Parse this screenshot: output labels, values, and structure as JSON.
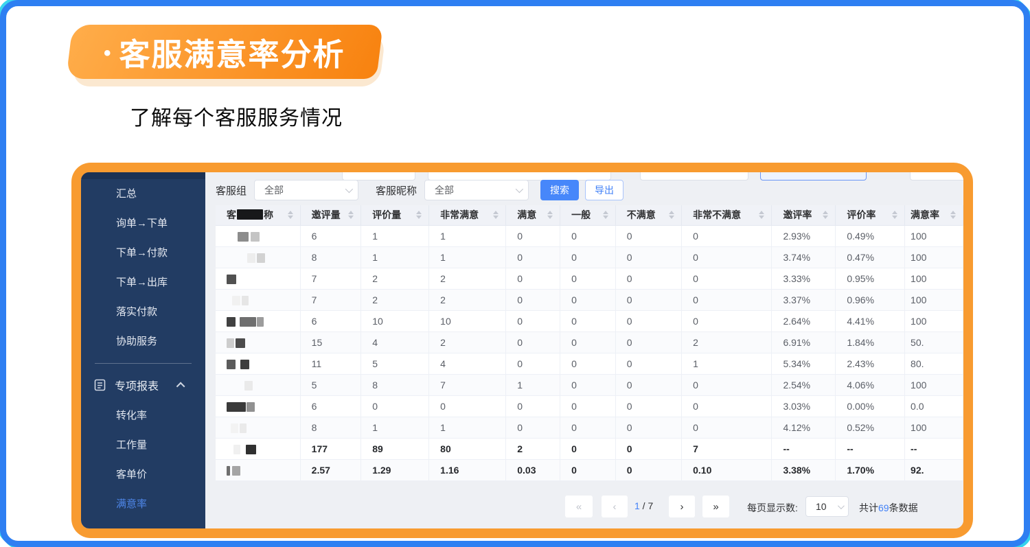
{
  "page": {
    "title_bullet": "•",
    "title": "客服满意率分析",
    "subtitle": "了解每个客服服务情况"
  },
  "sidebar": {
    "items": [
      "汇总",
      "询单→下单",
      "下单→付款",
      "下单→出库",
      "落实付款",
      "协助服务"
    ],
    "section": {
      "label": "专项报表",
      "icon": "document-icon",
      "chevron_icon": "chevron-up-icon"
    },
    "subitems": [
      {
        "label": "转化率",
        "active": false
      },
      {
        "label": "工作量",
        "active": false
      },
      {
        "label": "客单价",
        "active": false
      },
      {
        "label": "满意率",
        "active": true
      }
    ],
    "active_color": "#4E86E8",
    "bg_color": "#223C63"
  },
  "filters": {
    "group_label": "客服组",
    "group_value": "全部",
    "nickname_label": "客服昵称",
    "nickname_value": "全部",
    "search_button": "搜索",
    "export_button": "导出"
  },
  "table": {
    "header": {
      "col1_prefix": "客",
      "col1_suffix": "称",
      "col1_redacted": true,
      "columns": [
        "邀评量",
        "评价量",
        "非常满意",
        "满意",
        "一般",
        "不满意",
        "非常不满意",
        "邀评率",
        "评价率",
        "满意率"
      ]
    },
    "rows": [
      {
        "bold": false,
        "mosaic": [
          {
            "ml": 16,
            "w": 16,
            "c": "#8c8c8c"
          },
          {
            "ml": 3,
            "w": 13,
            "c": "#c4c4c4"
          }
        ],
        "cells": [
          "6",
          "1",
          "1",
          "0",
          "0",
          "0",
          "0",
          "2.93%",
          "0.49%",
          "100"
        ]
      },
      {
        "bold": false,
        "mosaic": [
          {
            "ml": 30,
            "w": 12,
            "c": "#ededed"
          },
          {
            "ml": 2,
            "w": 12,
            "c": "#d2d2d2"
          }
        ],
        "cells": [
          "8",
          "1",
          "1",
          "0",
          "0",
          "0",
          "0",
          "3.74%",
          "0.47%",
          "100"
        ]
      },
      {
        "bold": false,
        "mosaic": [
          {
            "ml": 0,
            "w": 14,
            "c": "#515151"
          }
        ],
        "cells": [
          "7",
          "2",
          "2",
          "0",
          "0",
          "0",
          "0",
          "3.33%",
          "0.95%",
          "100"
        ]
      },
      {
        "bold": false,
        "mosaic": [
          {
            "ml": 8,
            "w": 12,
            "c": "#f1f1f1"
          },
          {
            "ml": 2,
            "w": 10,
            "c": "#e6e6e6"
          }
        ],
        "cells": [
          "7",
          "2",
          "2",
          "0",
          "0",
          "0",
          "0",
          "3.37%",
          "0.96%",
          "100"
        ]
      },
      {
        "bold": false,
        "mosaic": [
          {
            "ml": 0,
            "w": 13,
            "c": "#414141"
          },
          {
            "ml": 6,
            "w": 24,
            "c": "#6f6f6f"
          },
          {
            "ml": 1,
            "w": 10,
            "c": "#9c9c9c"
          }
        ],
        "cells": [
          "6",
          "10",
          "10",
          "0",
          "0",
          "0",
          "0",
          "2.64%",
          "4.41%",
          "100"
        ]
      },
      {
        "bold": false,
        "mosaic": [
          {
            "ml": 0,
            "w": 11,
            "c": "#cdcdcd"
          },
          {
            "ml": 2,
            "w": 14,
            "c": "#4c4c4c"
          }
        ],
        "cells": [
          "15",
          "4",
          "2",
          "0",
          "0",
          "0",
          "2",
          "6.91%",
          "1.84%",
          "50."
        ]
      },
      {
        "bold": false,
        "mosaic": [
          {
            "ml": 0,
            "w": 13,
            "c": "#5c5c5c"
          },
          {
            "ml": 7,
            "w": 13,
            "c": "#3f3f3f"
          }
        ],
        "cells": [
          "11",
          "5",
          "4",
          "0",
          "0",
          "0",
          "1",
          "5.34%",
          "2.43%",
          "80."
        ]
      },
      {
        "bold": false,
        "mosaic": [
          {
            "ml": 26,
            "w": 12,
            "c": "#eaeaea"
          }
        ],
        "cells": [
          "5",
          "8",
          "7",
          "1",
          "0",
          "0",
          "0",
          "2.54%",
          "4.06%",
          "100"
        ]
      },
      {
        "bold": false,
        "mosaic": [
          {
            "ml": 0,
            "w": 28,
            "c": "#3a3a3a"
          },
          {
            "ml": 1,
            "w": 12,
            "c": "#919191"
          }
        ],
        "cells": [
          "6",
          "0",
          "0",
          "0",
          "0",
          "0",
          "0",
          "3.03%",
          "0.00%",
          "0.0"
        ]
      },
      {
        "bold": false,
        "mosaic": [
          {
            "ml": 6,
            "w": 11,
            "c": "#f3f3f3"
          },
          {
            "ml": 2,
            "w": 10,
            "c": "#eaeaea"
          }
        ],
        "cells": [
          "8",
          "1",
          "1",
          "0",
          "0",
          "0",
          "0",
          "4.12%",
          "0.52%",
          "100"
        ]
      },
      {
        "bold": true,
        "mosaic": [
          {
            "ml": 10,
            "w": 10,
            "c": "#f0f0f0"
          },
          {
            "ml": 8,
            "w": 15,
            "c": "#303030"
          }
        ],
        "cells": [
          "177",
          "89",
          "80",
          "2",
          "0",
          "0",
          "7",
          "--",
          "--",
          "--"
        ]
      },
      {
        "bold": true,
        "mosaic": [
          {
            "ml": 0,
            "w": 5,
            "c": "#6f6f6f"
          },
          {
            "ml": 3,
            "w": 12,
            "c": "#a5a5a5"
          }
        ],
        "cells": [
          "2.57",
          "1.29",
          "1.16",
          "0.03",
          "0",
          "0",
          "0.10",
          "3.38%",
          "1.70%",
          "92."
        ]
      }
    ]
  },
  "pagination": {
    "first": "«",
    "prev": "‹",
    "next": "›",
    "last": "»",
    "current_page": "1",
    "separator": " / ",
    "total_pages": "7",
    "per_page_label": "每页显示数:",
    "per_page_value": "10",
    "total_prefix": "共计",
    "total_count": "69",
    "total_suffix": "条数据"
  }
}
